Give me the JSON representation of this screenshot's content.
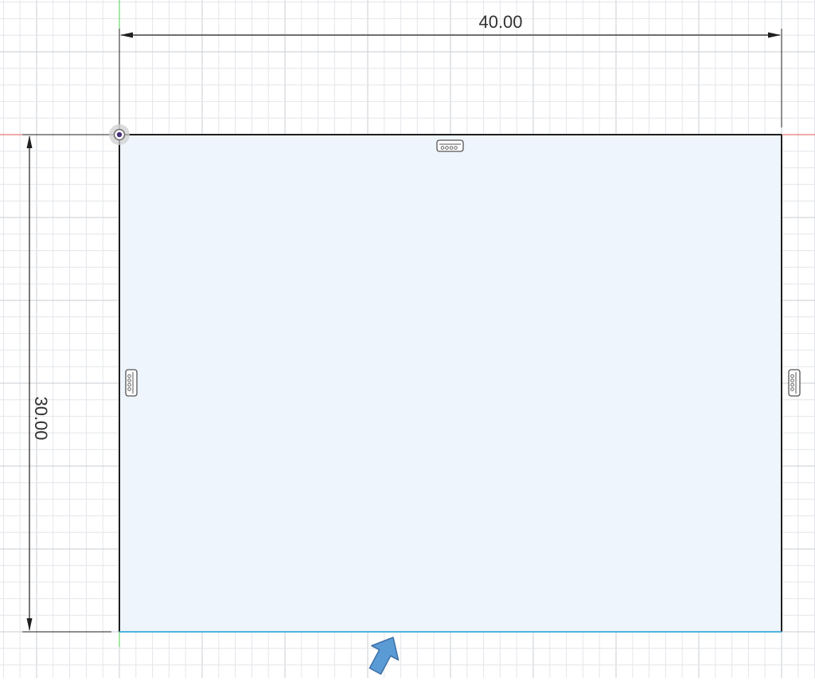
{
  "sketch": {
    "dimensions": {
      "width_label": "40.00",
      "height_label": "30.00"
    },
    "constraints": {
      "top": "horizontal-constraint-icon",
      "left": "vertical-constraint-icon",
      "right": "vertical-constraint-icon"
    },
    "origin": "origin-point-icon",
    "cursor": "arrow-cursor-icon"
  },
  "colors": {
    "grid_minor": "#e4e6ea",
    "grid_major": "#c8ccd3",
    "profile_fill": "#eef5fc",
    "profile_edge": "#1f1f1f",
    "selected_edge": "#4fb3e0",
    "x_axis": "#e05555",
    "y_axis": "#4ccf4c",
    "dimension_text": "#333333",
    "cursor_fill": "#5b9bd5",
    "cursor_stroke": "#3d6fa6"
  }
}
